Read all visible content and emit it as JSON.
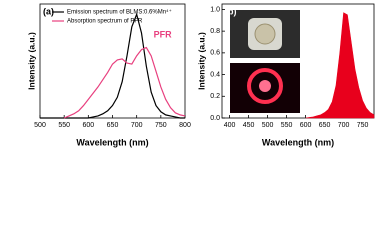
{
  "chart_data": [
    {
      "type": "line",
      "label": "(a)",
      "x_label": "Wavelength (nm)",
      "y_label": "Intensity (a.u.)",
      "x": [
        500,
        510,
        520,
        530,
        540,
        550,
        560,
        570,
        580,
        590,
        600,
        610,
        620,
        630,
        640,
        650,
        660,
        670,
        680,
        690,
        700,
        710,
        720,
        730,
        740,
        750,
        760,
        770,
        780,
        790,
        800
      ],
      "series": [
        {
          "name": "Emission spectrum of BLMS:0.6%Mn⁴⁺",
          "color": "#000000",
          "values": [
            0,
            0,
            0,
            0,
            0,
            0,
            0,
            0,
            0,
            0,
            0,
            0.01,
            0.02,
            0.04,
            0.07,
            0.12,
            0.2,
            0.35,
            0.6,
            0.88,
            1.0,
            0.82,
            0.5,
            0.25,
            0.12,
            0.06,
            0.03,
            0.02,
            0.01,
            0,
            0
          ]
        },
        {
          "name": "Absorption spectrum of PFR",
          "color": "#e8407f",
          "values": [
            null,
            null,
            null,
            null,
            null,
            0,
            0.02,
            0.04,
            0.07,
            0.12,
            0.18,
            0.24,
            0.3,
            0.37,
            0.44,
            0.52,
            0.56,
            0.57,
            0.53,
            0.52,
            0.6,
            0.66,
            0.68,
            0.6,
            0.45,
            0.3,
            0.18,
            0.1,
            0.05,
            0.03,
            0.02
          ]
        }
      ],
      "annotation": "PFR",
      "xlim": [
        500,
        800
      ],
      "xticks": [
        500,
        550,
        600,
        650,
        700,
        750,
        800
      ],
      "ylim": [
        0,
        1.1
      ],
      "legend": "upper left"
    },
    {
      "type": "area",
      "label": "(b)",
      "x_label": "Wavelength (nm)",
      "y_label": "Intensity (a.u.)",
      "x": [
        600,
        610,
        620,
        630,
        640,
        650,
        660,
        670,
        680,
        690,
        700,
        710,
        720,
        730,
        740,
        750,
        760,
        770,
        780
      ],
      "series": [
        {
          "color": "#e8001c",
          "values": [
            0,
            0.005,
            0.01,
            0.02,
            0.03,
            0.05,
            0.08,
            0.15,
            0.3,
            0.6,
            0.97,
            0.95,
            0.7,
            0.45,
            0.28,
            0.16,
            0.09,
            0.05,
            0.03
          ]
        }
      ],
      "xlim": [
        380,
        780
      ],
      "xticks": [
        400,
        450,
        500,
        550,
        600,
        650,
        700,
        750
      ],
      "ylim": [
        0,
        1.05
      ],
      "yticks": [
        {
          "value": 0,
          "label": "0.0"
        },
        {
          "value": 0.2,
          "label": "0.2"
        },
        {
          "value": 0.4,
          "label": "0.4"
        },
        {
          "value": 0.6,
          "label": "0.6"
        },
        {
          "value": 0.8,
          "label": "0.8"
        },
        {
          "value": 1,
          "label": "1.0"
        }
      ]
    }
  ]
}
